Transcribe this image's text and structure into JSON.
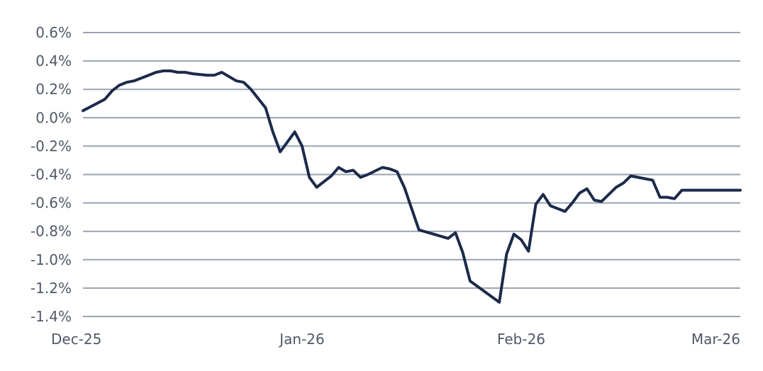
{
  "chart_data": {
    "type": "line",
    "title": "",
    "xlabel": "",
    "ylabel": "",
    "grid": true,
    "x_ticks": [
      "Dec-25",
      "Jan-26",
      "Feb-26",
      "Mar-26"
    ],
    "y_ticks": [
      "0.6%",
      "0.4%",
      "0.2%",
      "0.0%",
      "-0.2%",
      "-0.4%",
      "-0.6%",
      "-0.8%",
      "-1.0%",
      "-1.2%",
      "-1.4%"
    ],
    "ylim": [
      -1.4,
      0.6
    ],
    "x_range": [
      "2025-12-01",
      "2026-03-01"
    ],
    "line_color": "#1c2a4a",
    "series": [
      {
        "x": [
          "2025-12-01",
          "2025-12-04",
          "2025-12-05",
          "2025-12-06",
          "2025-12-07",
          "2025-12-08",
          "2025-12-09",
          "2025-12-10",
          "2025-12-11",
          "2025-12-12",
          "2025-12-13",
          "2025-12-14",
          "2025-12-15",
          "2025-12-16",
          "2025-12-18",
          "2025-12-19",
          "2025-12-20",
          "2025-12-22",
          "2025-12-23",
          "2025-12-24",
          "2025-12-26",
          "2025-12-27",
          "2025-12-28",
          "2025-12-29",
          "2025-12-30",
          "2025-12-31",
          "2026-01-01",
          "2026-01-02",
          "2026-01-04",
          "2026-01-05",
          "2026-01-06",
          "2026-01-07",
          "2026-01-08",
          "2026-01-09",
          "2026-01-11",
          "2026-01-12",
          "2026-01-13",
          "2026-01-14",
          "2026-01-16",
          "2026-01-20",
          "2026-01-21",
          "2026-01-22",
          "2026-01-23",
          "2026-01-27",
          "2026-01-28",
          "2026-01-29",
          "2026-01-30",
          "2026-01-31",
          "2026-02-01",
          "2026-02-02",
          "2026-02-03",
          "2026-02-05",
          "2026-02-06",
          "2026-02-07",
          "2026-02-08",
          "2026-02-09",
          "2026-02-10",
          "2026-02-12",
          "2026-02-13",
          "2026-02-14",
          "2026-02-17",
          "2026-02-18",
          "2026-02-19",
          "2026-02-20",
          "2026-02-21",
          "2026-02-23",
          "2026-02-24",
          "2026-02-25",
          "2026-02-26",
          "2026-02-27",
          "2026-02-28",
          "2026-03-01"
        ],
        "y": [
          0.05,
          0.13,
          0.19,
          0.23,
          0.25,
          0.26,
          0.28,
          0.3,
          0.32,
          0.33,
          0.33,
          0.32,
          0.32,
          0.31,
          0.3,
          0.3,
          0.32,
          0.26,
          0.25,
          0.2,
          0.07,
          -0.1,
          -0.24,
          -0.17,
          -0.1,
          -0.2,
          -0.42,
          -0.49,
          -0.41,
          -0.35,
          -0.38,
          -0.37,
          -0.42,
          -0.4,
          -0.35,
          -0.36,
          -0.38,
          -0.49,
          -0.79,
          -0.85,
          -0.81,
          -0.95,
          -1.15,
          -1.3,
          -0.96,
          -0.82,
          -0.86,
          -0.94,
          -0.61,
          -0.54,
          -0.62,
          -0.66,
          -0.6,
          -0.53,
          -0.5,
          -0.58,
          -0.59,
          -0.49,
          -0.46,
          -0.41,
          -0.44,
          -0.56,
          -0.56,
          -0.57,
          -0.51,
          -0.51,
          -0.51,
          -0.51,
          -0.51,
          -0.51,
          -0.51,
          -0.51
        ]
      }
    ]
  }
}
